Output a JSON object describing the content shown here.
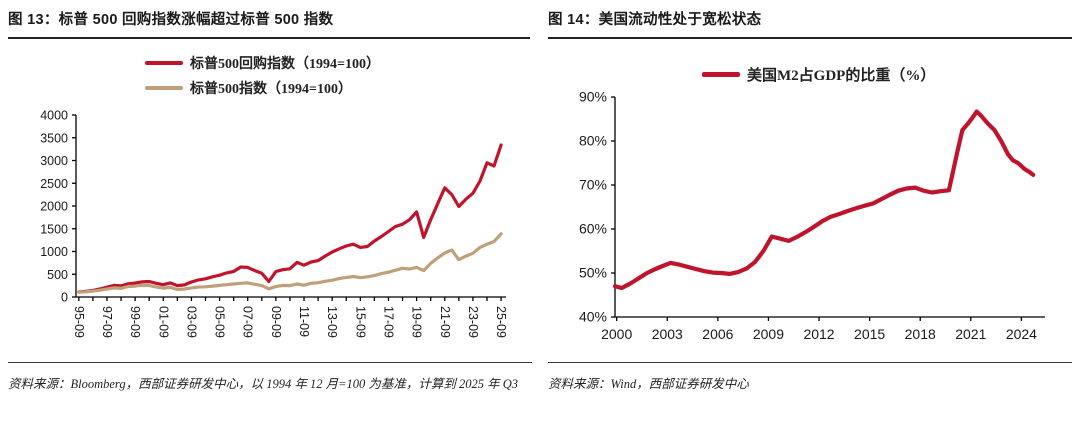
{
  "page": {
    "background": "#ffffff",
    "accent_red": "#c0142c",
    "accent_tan": "#bfa07a"
  },
  "figures": [
    {
      "title": "图 13：标普 500 回购指数涨幅超过标普 500 指数",
      "source": "资料来源：Bloomberg，西部证券研发中心，以 1994 年 12 月=100 为基准，计算到 2025 年 Q3",
      "legend": [
        {
          "label": "标普500回购指数（1994=100）",
          "color": "#c0142c"
        },
        {
          "label": "标普500指数（1994=100）",
          "color": "#bfa07a"
        }
      ]
    },
    {
      "title": "图 14：美国流动性处于宽松状态",
      "source": "资料来源：Wind，西部证券研发中心",
      "legend": [
        {
          "label": "美国M2占GDP的比重（%）",
          "color": "#c0142c"
        }
      ]
    }
  ],
  "chart_data": [
    {
      "type": "line",
      "title": "标普 500 回购指数涨幅超过标普 500 指数",
      "x_min": 1995.55,
      "x_max": 2026.1,
      "y_min": 0,
      "y_max": 4000,
      "grid": false,
      "legend_position": "top",
      "x_label_rotate": true,
      "x_minor_ticks": true,
      "y_ticks": [
        {
          "v": 0,
          "label": "0"
        },
        {
          "v": 500,
          "label": "500"
        },
        {
          "v": 1000,
          "label": "1000"
        },
        {
          "v": 1500,
          "label": "1500"
        },
        {
          "v": 2000,
          "label": "2000"
        },
        {
          "v": 2500,
          "label": "2500"
        },
        {
          "v": 3000,
          "label": "3000"
        },
        {
          "v": 3500,
          "label": "3500"
        },
        {
          "v": 4000,
          "label": "4000"
        }
      ],
      "x_ticks": [
        {
          "v": 1995.75,
          "label": "95-09"
        },
        {
          "v": 1997.75,
          "label": "97-09"
        },
        {
          "v": 1999.75,
          "label": "99-09"
        },
        {
          "v": 2001.75,
          "label": "01-09"
        },
        {
          "v": 2003.75,
          "label": "03-09"
        },
        {
          "v": 2005.75,
          "label": "05-09"
        },
        {
          "v": 2007.75,
          "label": "07-09"
        },
        {
          "v": 2009.75,
          "label": "09-09"
        },
        {
          "v": 2011.75,
          "label": "11-09"
        },
        {
          "v": 2013.75,
          "label": "13-09"
        },
        {
          "v": 2015.75,
          "label": "15-09"
        },
        {
          "v": 2017.75,
          "label": "17-09"
        },
        {
          "v": 2019.75,
          "label": "19-09"
        },
        {
          "v": 2021.75,
          "label": "21-09"
        },
        {
          "v": 2023.75,
          "label": "23-09"
        },
        {
          "v": 2025.75,
          "label": "25-09"
        }
      ],
      "series": [
        {
          "name": "标普500回购指数（1994=100）",
          "color": "#c0142c",
          "x_start": 1995.75,
          "x_step": 0.5,
          "values": [
            110,
            125,
            145,
            175,
            215,
            255,
            245,
            290,
            305,
            335,
            340,
            300,
            270,
            310,
            250,
            265,
            330,
            375,
            400,
            445,
            480,
            530,
            560,
            660,
            650,
            580,
            520,
            340,
            560,
            600,
            620,
            760,
            700,
            770,
            800,
            900,
            990,
            1060,
            1120,
            1160,
            1090,
            1110,
            1230,
            1330,
            1440,
            1550,
            1600,
            1700,
            1870,
            1310,
            1700,
            2050,
            2400,
            2250,
            1990,
            2150,
            2280,
            2550,
            2950,
            2880,
            3340
          ]
        },
        {
          "name": "标普500指数（1994=100）",
          "color": "#bfa07a",
          "x_start": 1995.75,
          "x_step": 0.5,
          "values": [
            105,
            115,
            130,
            150,
            175,
            200,
            190,
            230,
            240,
            260,
            255,
            220,
            195,
            210,
            165,
            175,
            200,
            220,
            225,
            240,
            255,
            270,
            285,
            300,
            310,
            280,
            250,
            180,
            230,
            255,
            250,
            285,
            260,
            300,
            315,
            345,
            370,
            405,
            430,
            450,
            425,
            445,
            470,
            515,
            545,
            590,
            630,
            615,
            650,
            580,
            740,
            860,
            970,
            1030,
            820,
            900,
            960,
            1090,
            1160,
            1220,
            1390
          ]
        }
      ]
    },
    {
      "type": "line",
      "title": "美国流动性处于宽松状态",
      "x_min": 1999.9,
      "x_max": 2025.4,
      "y_min": 40,
      "y_max": 90,
      "grid": false,
      "legend_position": "top",
      "x_label_rotate": false,
      "x_minor_ticks": false,
      "y_ticks": [
        {
          "v": 40,
          "label": "40%"
        },
        {
          "v": 50,
          "label": "50%"
        },
        {
          "v": 60,
          "label": "60%"
        },
        {
          "v": 70,
          "label": "70%"
        },
        {
          "v": 80,
          "label": "80%"
        },
        {
          "v": 90,
          "label": "90%"
        }
      ],
      "x_ticks": [
        {
          "v": 2000,
          "label": "2000"
        },
        {
          "v": 2003,
          "label": "2003"
        },
        {
          "v": 2006,
          "label": "2006"
        },
        {
          "v": 2009,
          "label": "2009"
        },
        {
          "v": 2012,
          "label": "2012"
        },
        {
          "v": 2015,
          "label": "2015"
        },
        {
          "v": 2018,
          "label": "2018"
        },
        {
          "v": 2021,
          "label": "2021"
        },
        {
          "v": 2024,
          "label": "2024"
        }
      ],
      "series": [
        {
          "name": "美国M2占GDP的比重（%）",
          "color": "#c0142c",
          "points": [
            [
              1999.9,
              47.0
            ],
            [
              2000.3,
              46.6
            ],
            [
              2000.8,
              47.6
            ],
            [
              2001.3,
              48.8
            ],
            [
              2001.8,
              50.0
            ],
            [
              2002.3,
              50.9
            ],
            [
              2002.8,
              51.7
            ],
            [
              2003.2,
              52.3
            ],
            [
              2003.7,
              51.9
            ],
            [
              2004.2,
              51.4
            ],
            [
              2004.7,
              50.9
            ],
            [
              2005.2,
              50.4
            ],
            [
              2005.7,
              50.1
            ],
            [
              2006.2,
              50.0
            ],
            [
              2006.7,
              49.8
            ],
            [
              2007.2,
              50.2
            ],
            [
              2007.7,
              51.0
            ],
            [
              2008.2,
              52.5
            ],
            [
              2008.7,
              55.0
            ],
            [
              2009.2,
              58.3
            ],
            [
              2009.7,
              57.8
            ],
            [
              2010.2,
              57.3
            ],
            [
              2010.7,
              58.2
            ],
            [
              2011.2,
              59.3
            ],
            [
              2011.7,
              60.5
            ],
            [
              2012.2,
              61.8
            ],
            [
              2012.7,
              62.8
            ],
            [
              2013.2,
              63.4
            ],
            [
              2013.7,
              64.1
            ],
            [
              2014.2,
              64.7
            ],
            [
              2014.7,
              65.3
            ],
            [
              2015.2,
              65.8
            ],
            [
              2015.7,
              66.8
            ],
            [
              2016.2,
              67.8
            ],
            [
              2016.7,
              68.7
            ],
            [
              2017.2,
              69.2
            ],
            [
              2017.7,
              69.4
            ],
            [
              2018.2,
              68.7
            ],
            [
              2018.7,
              68.3
            ],
            [
              2019.2,
              68.6
            ],
            [
              2019.7,
              68.8
            ],
            [
              2020.2,
              77.5
            ],
            [
              2020.5,
              82.5
            ],
            [
              2020.8,
              83.8
            ],
            [
              2021.1,
              85.3
            ],
            [
              2021.35,
              86.7
            ],
            [
              2021.6,
              85.8
            ],
            [
              2022.0,
              84.0
            ],
            [
              2022.4,
              82.5
            ],
            [
              2022.8,
              80.0
            ],
            [
              2023.2,
              77.0
            ],
            [
              2023.5,
              75.6
            ],
            [
              2023.8,
              75.0
            ],
            [
              2024.2,
              73.6
            ],
            [
              2024.5,
              72.9
            ],
            [
              2024.7,
              72.3
            ]
          ]
        }
      ]
    }
  ]
}
